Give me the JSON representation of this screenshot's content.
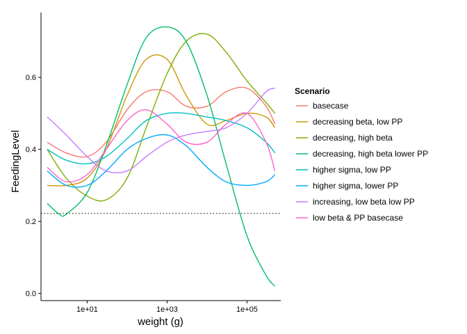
{
  "chart_data": {
    "type": "line",
    "xlabel": "weight (g)",
    "ylabel": "FeedingLevel",
    "x_scale": "log10",
    "xlim": [
      0.7,
      700000
    ],
    "ylim": [
      -0.02,
      0.78
    ],
    "x_ticks": [
      {
        "value": 10,
        "label": "1e+01"
      },
      {
        "value": 1000,
        "label": "1e+03"
      },
      {
        "value": 100000,
        "label": "1e+05"
      }
    ],
    "y_ticks": [
      {
        "value": 0.0,
        "label": "0.0"
      },
      {
        "value": 0.2,
        "label": "0.2"
      },
      {
        "value": 0.4,
        "label": "0.4"
      },
      {
        "value": 0.6,
        "label": "0.6"
      }
    ],
    "grid": false,
    "reference_line": {
      "y": 0.222,
      "style": "dotted"
    },
    "legend": {
      "title": "Scenario",
      "position": "right"
    },
    "series": [
      {
        "name": "basecase",
        "color": "#F8766D",
        "x": [
          1,
          3,
          10,
          30,
          100,
          300,
          1000,
          3000,
          10000,
          30000,
          100000,
          300000,
          500000
        ],
        "y": [
          0.42,
          0.39,
          0.38,
          0.42,
          0.51,
          0.56,
          0.56,
          0.52,
          0.52,
          0.56,
          0.57,
          0.52,
          0.47
        ]
      },
      {
        "name": "decreasing beta, low PP",
        "color": "#CD9600",
        "x": [
          1,
          3,
          10,
          30,
          100,
          300,
          1000,
          3000,
          10000,
          30000,
          100000,
          300000,
          500000
        ],
        "y": [
          0.3,
          0.3,
          0.32,
          0.4,
          0.55,
          0.65,
          0.65,
          0.55,
          0.47,
          0.48,
          0.5,
          0.49,
          0.46
        ]
      },
      {
        "name": "decreasing, high beta",
        "color": "#7CAE00",
        "x": [
          1,
          3,
          10,
          30,
          100,
          300,
          1000,
          3000,
          10000,
          30000,
          100000,
          300000,
          500000
        ],
        "y": [
          0.4,
          0.32,
          0.27,
          0.26,
          0.32,
          0.46,
          0.61,
          0.7,
          0.72,
          0.67,
          0.59,
          0.53,
          0.5
        ]
      },
      {
        "name": "decreasing, high beta lower PP",
        "color": "#00BE67",
        "x": [
          1,
          2,
          3,
          10,
          30,
          100,
          300,
          1000,
          3000,
          10000,
          30000,
          100000,
          300000,
          500000
        ],
        "y": [
          0.25,
          0.22,
          0.22,
          0.28,
          0.41,
          0.58,
          0.71,
          0.74,
          0.7,
          0.55,
          0.36,
          0.16,
          0.05,
          0.02
        ]
      },
      {
        "name": "higher sigma, low PP",
        "color": "#00BFC4",
        "x": [
          1,
          3,
          10,
          30,
          100,
          300,
          1000,
          3000,
          10000,
          30000,
          100000,
          300000,
          500000
        ],
        "y": [
          0.4,
          0.37,
          0.36,
          0.38,
          0.43,
          0.48,
          0.5,
          0.5,
          0.49,
          0.48,
          0.46,
          0.42,
          0.39
        ]
      },
      {
        "name": "higher sigma, lower PP",
        "color": "#00A9FF",
        "x": [
          1,
          3,
          10,
          30,
          100,
          300,
          1000,
          3000,
          10000,
          30000,
          100000,
          300000,
          500000
        ],
        "y": [
          0.34,
          0.3,
          0.3,
          0.34,
          0.4,
          0.43,
          0.44,
          0.41,
          0.35,
          0.31,
          0.3,
          0.31,
          0.33
        ]
      },
      {
        "name": "increasing, low beta low PP",
        "color": "#C77CFF",
        "x": [
          1,
          3,
          10,
          30,
          100,
          300,
          1000,
          3000,
          10000,
          30000,
          100000,
          300000,
          500000
        ],
        "y": [
          0.49,
          0.44,
          0.38,
          0.34,
          0.34,
          0.38,
          0.42,
          0.44,
          0.45,
          0.46,
          0.5,
          0.56,
          0.57
        ]
      },
      {
        "name": "low beta & PP basecase",
        "color": "#FF61CC",
        "x": [
          1,
          3,
          10,
          30,
          100,
          300,
          1000,
          3000,
          10000,
          30000,
          100000,
          300000,
          500000
        ],
        "y": [
          0.35,
          0.31,
          0.33,
          0.4,
          0.48,
          0.51,
          0.47,
          0.42,
          0.42,
          0.47,
          0.5,
          0.42,
          0.34
        ]
      }
    ]
  }
}
